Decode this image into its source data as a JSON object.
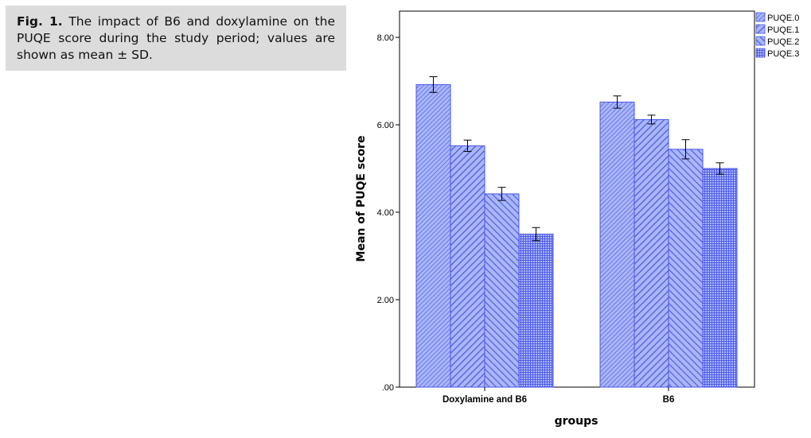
{
  "caption": {
    "label": "Fig. 1.",
    "text": "The impact of B6 and doxylamine on the PUQE score during the study period; values are shown as mean ± SD."
  },
  "chart_data": {
    "type": "bar",
    "xlabel": "groups",
    "ylabel": "Mean of PUQE score",
    "ylim": [
      0,
      8.6
    ],
    "yticks": [
      0,
      2,
      4,
      6,
      8
    ],
    "ytick_labels": [
      ".00",
      "2.00",
      "4.00",
      "6.00",
      "8.00"
    ],
    "categories": [
      "Doxylamine and B6",
      "B6"
    ],
    "legend_position": "top-right",
    "series": [
      {
        "name": "PUQE.0",
        "values": [
          6.92,
          6.52
        ],
        "sd": [
          0.18,
          0.14
        ],
        "pattern": "diag-down-fine"
      },
      {
        "name": "PUQE.1",
        "values": [
          5.52,
          6.12
        ],
        "sd": [
          0.13,
          0.1
        ],
        "pattern": "diag-down-wide"
      },
      {
        "name": "PUQE.2",
        "values": [
          4.42,
          5.44
        ],
        "sd": [
          0.15,
          0.22
        ],
        "pattern": "diag-up-wide"
      },
      {
        "name": "PUQE.3",
        "values": [
          3.5,
          5.0
        ],
        "sd": [
          0.15,
          0.13
        ],
        "pattern": "grid"
      }
    ],
    "colors": {
      "bar_fill": "#a9b7f7",
      "bar_stroke": "#4a56e6",
      "hatch": "#4a56e6",
      "axis": "#000000"
    }
  }
}
